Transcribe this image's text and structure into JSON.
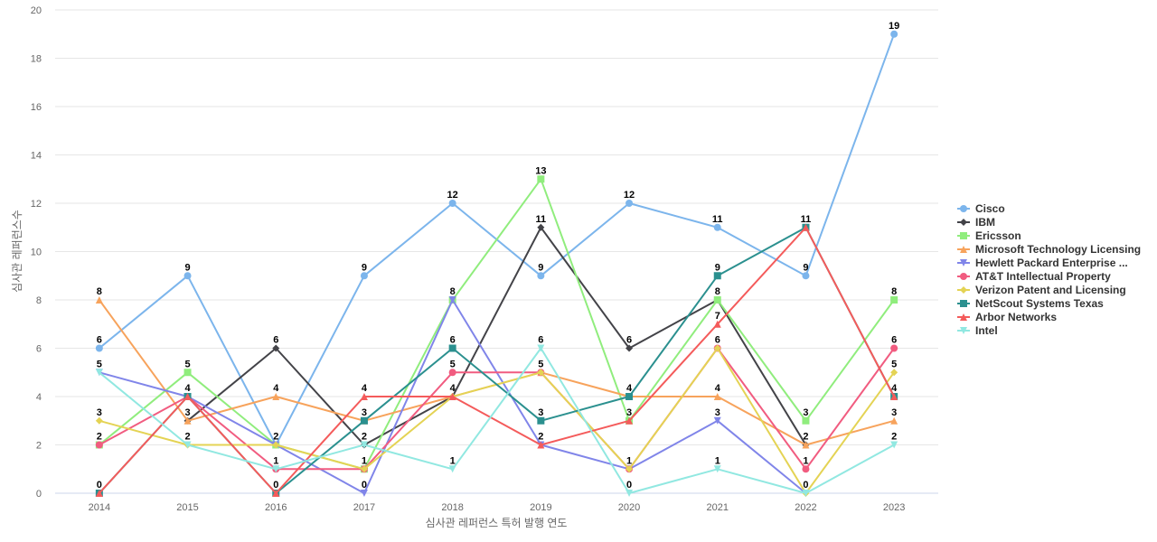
{
  "chart_data": {
    "type": "line",
    "xlabel": "심사관 레퍼런스 특허 발행 연도",
    "ylabel": "심사관 레퍼런스수",
    "x": [
      "2014",
      "2015",
      "2016",
      "2017",
      "2018",
      "2019",
      "2020",
      "2021",
      "2022",
      "2023"
    ],
    "ylim": [
      0,
      20
    ],
    "yticks": [
      0,
      2,
      4,
      6,
      8,
      10,
      12,
      14,
      16,
      18,
      20
    ],
    "grid": true,
    "legend_position": "right",
    "series": [
      {
        "name": "Cisco",
        "color": "#7cb5ec",
        "marker": "circle",
        "values": [
          6,
          9,
          2,
          9,
          12,
          9,
          12,
          11,
          9,
          19
        ]
      },
      {
        "name": "IBM",
        "color": "#434348",
        "marker": "diamond",
        "values": [
          null,
          3,
          6,
          2,
          4,
          11,
          6,
          8,
          2,
          null
        ]
      },
      {
        "name": "Ericsson",
        "color": "#90ed7d",
        "marker": "square",
        "values": [
          2,
          5,
          2,
          1,
          8,
          13,
          3,
          8,
          3,
          8
        ]
      },
      {
        "name": "Microsoft Technology Licensing",
        "color": "#f7a35c",
        "marker": "triangle",
        "values": [
          8,
          3,
          4,
          3,
          4,
          5,
          4,
          4,
          2,
          3
        ]
      },
      {
        "name": "Hewlett Packard Enterprise ...",
        "color": "#8085e9",
        "marker": "triangle-down",
        "values": [
          5,
          4,
          2,
          0,
          8,
          2,
          1,
          3,
          0,
          null
        ]
      },
      {
        "name": "AT&T Intellectual Property",
        "color": "#f15c80",
        "marker": "circle",
        "values": [
          2,
          4,
          1,
          1,
          5,
          5,
          1,
          6,
          1,
          6
        ]
      },
      {
        "name": "Verizon Patent and Licensing",
        "color": "#e4d354",
        "marker": "diamond",
        "values": [
          3,
          2,
          2,
          1,
          4,
          5,
          1,
          6,
          0,
          5
        ]
      },
      {
        "name": "NetScout Systems Texas",
        "color": "#2b908f",
        "marker": "square",
        "values": [
          0,
          4,
          0,
          3,
          6,
          3,
          4,
          9,
          11,
          4
        ]
      },
      {
        "name": "Arbor Networks",
        "color": "#f45b5b",
        "marker": "triangle",
        "values": [
          0,
          4,
          0,
          4,
          4,
          2,
          3,
          7,
          11,
          4
        ]
      },
      {
        "name": "Intel",
        "color": "#91e8e1",
        "marker": "triangle-down",
        "values": [
          5,
          2,
          1,
          2,
          1,
          6,
          0,
          1,
          0,
          2
        ]
      }
    ],
    "data_labels": [
      {
        "x": "2014",
        "value": "8",
        "y": 8
      },
      {
        "x": "2014",
        "value": "6",
        "y": 6
      },
      {
        "x": "2014",
        "value": "5",
        "y": 5
      },
      {
        "x": "2014",
        "value": "3",
        "y": 3
      },
      {
        "x": "2014",
        "value": "2",
        "y": 2
      },
      {
        "x": "2014",
        "value": "0",
        "y": 0
      },
      {
        "x": "2015",
        "value": "9",
        "y": 9
      },
      {
        "x": "2015",
        "value": "5",
        "y": 5
      },
      {
        "x": "2015",
        "value": "4",
        "y": 4
      },
      {
        "x": "2015",
        "value": "3",
        "y": 3
      },
      {
        "x": "2015",
        "value": "2",
        "y": 2
      },
      {
        "x": "2016",
        "value": "6",
        "y": 6
      },
      {
        "x": "2016",
        "value": "4",
        "y": 4
      },
      {
        "x": "2016",
        "value": "2",
        "y": 2
      },
      {
        "x": "2016",
        "value": "1",
        "y": 1
      },
      {
        "x": "2016",
        "value": "0",
        "y": 0
      },
      {
        "x": "2017",
        "value": "9",
        "y": 9
      },
      {
        "x": "2017",
        "value": "4",
        "y": 4
      },
      {
        "x": "2017",
        "value": "3",
        "y": 3
      },
      {
        "x": "2017",
        "value": "2",
        "y": 2
      },
      {
        "x": "2017",
        "value": "1",
        "y": 1
      },
      {
        "x": "2017",
        "value": "0",
        "y": 0
      },
      {
        "x": "2018",
        "value": "12",
        "y": 12
      },
      {
        "x": "2018",
        "value": "8",
        "y": 8
      },
      {
        "x": "2018",
        "value": "6",
        "y": 6
      },
      {
        "x": "2018",
        "value": "5",
        "y": 5
      },
      {
        "x": "2018",
        "value": "4",
        "y": 4
      },
      {
        "x": "2018",
        "value": "1",
        "y": 1
      },
      {
        "x": "2019",
        "value": "13",
        "y": 13
      },
      {
        "x": "2019",
        "value": "11",
        "y": 11
      },
      {
        "x": "2019",
        "value": "9",
        "y": 9
      },
      {
        "x": "2019",
        "value": "6",
        "y": 6
      },
      {
        "x": "2019",
        "value": "5",
        "y": 5
      },
      {
        "x": "2019",
        "value": "3",
        "y": 3
      },
      {
        "x": "2019",
        "value": "2",
        "y": 2
      },
      {
        "x": "2020",
        "value": "12",
        "y": 12
      },
      {
        "x": "2020",
        "value": "6",
        "y": 6
      },
      {
        "x": "2020",
        "value": "4",
        "y": 4
      },
      {
        "x": "2020",
        "value": "3",
        "y": 3
      },
      {
        "x": "2020",
        "value": "1",
        "y": 1
      },
      {
        "x": "2020",
        "value": "0",
        "y": 0
      },
      {
        "x": "2021",
        "value": "11",
        "y": 11
      },
      {
        "x": "2021",
        "value": "9",
        "y": 9
      },
      {
        "x": "2021",
        "value": "8",
        "y": 8
      },
      {
        "x": "2021",
        "value": "7",
        "y": 7
      },
      {
        "x": "2021",
        "value": "6",
        "y": 6
      },
      {
        "x": "2021",
        "value": "4",
        "y": 4
      },
      {
        "x": "2021",
        "value": "3",
        "y": 3
      },
      {
        "x": "2021",
        "value": "1",
        "y": 1
      },
      {
        "x": "2022",
        "value": "11",
        "y": 11
      },
      {
        "x": "2022",
        "value": "9",
        "y": 9
      },
      {
        "x": "2022",
        "value": "3",
        "y": 3
      },
      {
        "x": "2022",
        "value": "2",
        "y": 2
      },
      {
        "x": "2022",
        "value": "1",
        "y": 1
      },
      {
        "x": "2022",
        "value": "0",
        "y": 0
      },
      {
        "x": "2023",
        "value": "19",
        "y": 19
      },
      {
        "x": "2023",
        "value": "8",
        "y": 8
      },
      {
        "x": "2023",
        "value": "6",
        "y": 6
      },
      {
        "x": "2023",
        "value": "5",
        "y": 5
      },
      {
        "x": "2023",
        "value": "4",
        "y": 4
      },
      {
        "x": "2023",
        "value": "3",
        "y": 3
      },
      {
        "x": "2023",
        "value": "2",
        "y": 2
      }
    ]
  }
}
